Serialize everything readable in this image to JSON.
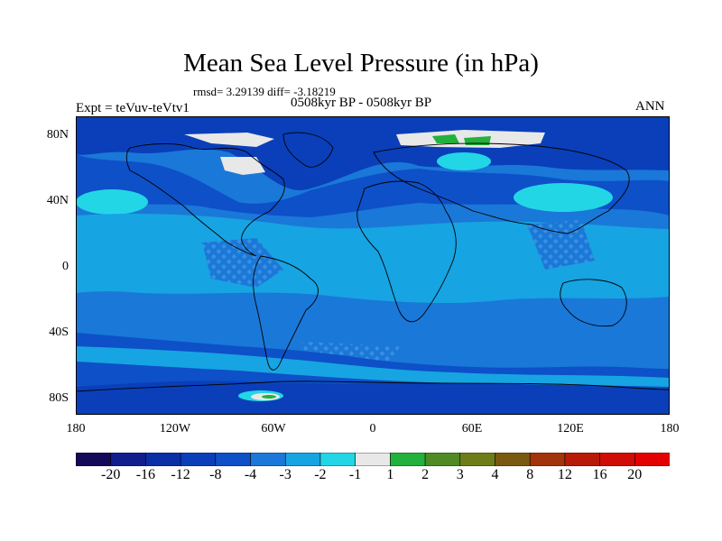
{
  "title": "Mean Sea Level Pressure (in hPa)",
  "stats": "rmsd= 3.29139 diff= -3.18219",
  "period": "0508kyr BP - 0508kyr BP",
  "expt": "Expt = teVuv-teVtv1",
  "season": "ANN",
  "lat_ticks": [
    "80N",
    "40N",
    "0",
    "40S",
    "80S"
  ],
  "lon_ticks": [
    "180",
    "120W",
    "60W",
    "0",
    "60E",
    "120E",
    "180"
  ],
  "colorbar": {
    "labels": [
      "-20",
      "-16",
      "-12",
      "-8",
      "-4",
      "-3",
      "-2",
      "-1",
      "1",
      "2",
      "3",
      "4",
      "8",
      "12",
      "16",
      "20"
    ],
    "colors": [
      "#140a5a",
      "#101f8c",
      "#0a2fa6",
      "#0a3fb9",
      "#0d50c8",
      "#1a78d8",
      "#17a4e2",
      "#22d6e6",
      "#e8e8e8",
      "#21b13c",
      "#4f8a25",
      "#6e7d1a",
      "#7a5a10",
      "#a2330c",
      "#b81a08",
      "#d00c06",
      "#e40000"
    ]
  },
  "map_colors": {
    "background": "#1a78d8",
    "deep": "#0a3fb9",
    "mid": "#0d50c8",
    "light": "#17a4e2",
    "cyan": "#22d6e6",
    "white": "#e8e8e8",
    "green": "#21b13c"
  }
}
